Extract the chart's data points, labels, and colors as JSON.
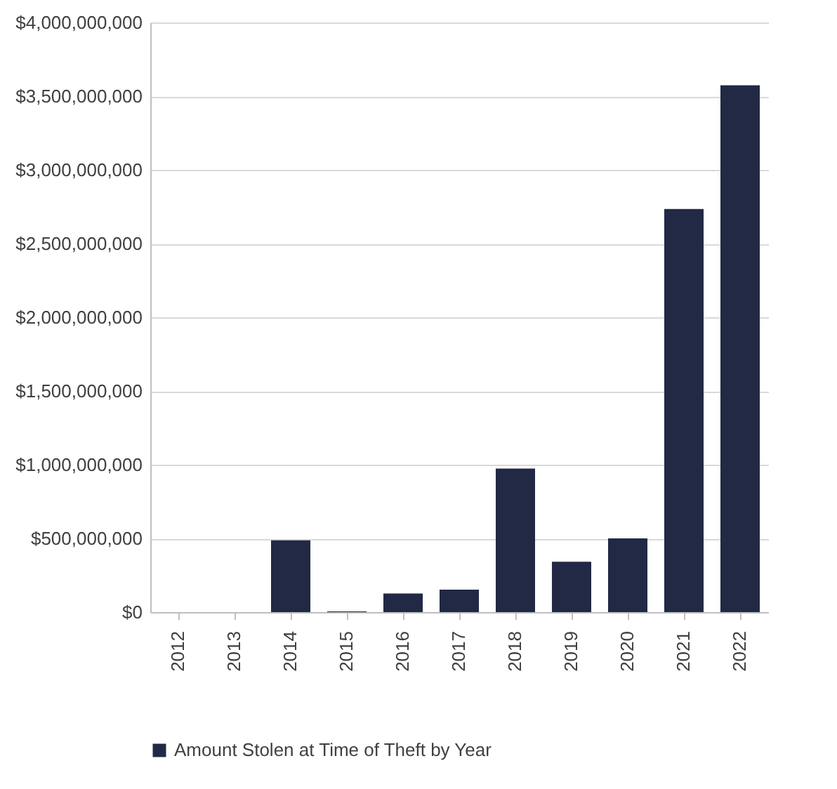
{
  "chart_data": {
    "type": "bar",
    "categories": [
      "2012",
      "2013",
      "2014",
      "2015",
      "2016",
      "2017",
      "2018",
      "2019",
      "2020",
      "2021",
      "2022"
    ],
    "series": [
      {
        "name": "Amount Stolen at Time of Theft by Year",
        "color": "#212945",
        "values": [
          0,
          0,
          487000000,
          5000000,
          126000000,
          152000000,
          974000000,
          342000000,
          500000000,
          2734000000,
          3574000000
        ]
      }
    ],
    "ylim": [
      0,
      4000000000
    ],
    "yticks": [
      {
        "value": 0,
        "label": "$0"
      },
      {
        "value": 500000000,
        "label": "$500,000,000"
      },
      {
        "value": 1000000000,
        "label": "$1,000,000,000"
      },
      {
        "value": 1500000000,
        "label": "$1,500,000,000"
      },
      {
        "value": 2000000000,
        "label": "$2,000,000,000"
      },
      {
        "value": 2500000000,
        "label": "$2,500,000,000"
      },
      {
        "value": 3000000000,
        "label": "$3,000,000,000"
      },
      {
        "value": 3500000000,
        "label": "$3,500,000,000"
      },
      {
        "value": 4000000000,
        "label": "$4,000,000,000"
      }
    ],
    "grid": "y",
    "legend": "bottom"
  }
}
